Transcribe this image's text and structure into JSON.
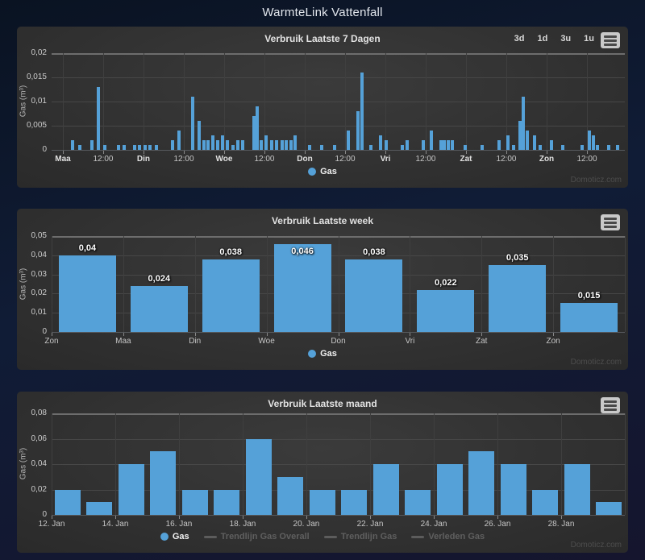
{
  "page": {
    "title": "WarmteLink Vattenfall",
    "watermark": "Domoticz.com"
  },
  "colors": {
    "bar": "#55a1d8",
    "legend_disabled": "#5f5f5f"
  },
  "chart_data": [
    {
      "type": "bar",
      "title": "Verbruik Laatste 7 Dagen",
      "ylabel": "Gas (m³)",
      "ylim": [
        0,
        0.02
      ],
      "ytick_values": [
        0,
        0.005,
        0.01,
        0.015,
        0.02
      ],
      "yticks": [
        "0",
        "0,005",
        "0,01",
        "0,015",
        "0,02"
      ],
      "xticks": [
        "Maa",
        "12:00",
        "Din",
        "12:00",
        "Woe",
        "12:00",
        "Don",
        "12:00",
        "Vri",
        "12:00",
        "Zat",
        "12:00",
        "Zon",
        "12:00"
      ],
      "xtick_bold": [
        true,
        false,
        true,
        false,
        true,
        false,
        true,
        false,
        true,
        false,
        true,
        false,
        true,
        false
      ],
      "xtick_pct": [
        1.97,
        9.0,
        16.03,
        23.07,
        30.1,
        37.13,
        44.16,
        51.2,
        58.23,
        65.26,
        72.29,
        79.32,
        86.36,
        93.39
      ],
      "vgrid_pct": [
        1.97,
        9.0,
        16.03,
        23.07,
        30.1,
        37.13,
        44.16,
        51.2,
        58.23,
        65.26,
        72.29,
        79.32,
        86.36,
        93.39
      ],
      "x_pct": [
        3.7,
        4.9,
        7.0,
        8.2,
        9.3,
        11.7,
        12.7,
        14.5,
        15.3,
        16.3,
        17.2,
        18.3,
        21.1,
        22.2,
        24.6,
        25.7,
        26.6,
        27.3,
        28.1,
        29.0,
        29.8,
        30.7,
        31.6,
        32.5,
        33.3,
        35.3,
        35.9,
        36.6,
        37.4,
        38.4,
        39.2,
        40.2,
        40.9,
        41.8,
        42.5,
        45.0,
        47.1,
        49.4,
        51.8,
        53.4,
        54.1,
        55.7,
        57.4,
        58.4,
        61.2,
        62.0,
        64.8,
        66.2,
        67.9,
        68.5,
        69.2,
        69.9,
        72.2,
        75.1,
        78.1,
        79.6,
        80.6,
        81.7,
        82.3,
        83.0,
        84.2,
        85.2,
        87.2,
        89.2,
        92.5,
        93.8,
        94.5,
        95.2,
        97.2,
        98.7
      ],
      "values": [
        0.002,
        0.001,
        0.002,
        0.013,
        0.001,
        0.001,
        0.001,
        0.001,
        0.001,
        0.001,
        0.001,
        0.001,
        0.002,
        0.004,
        0.011,
        0.006,
        0.002,
        0.002,
        0.003,
        0.002,
        0.003,
        0.002,
        0.001,
        0.002,
        0.002,
        0.007,
        0.009,
        0.002,
        0.003,
        0.002,
        0.002,
        0.002,
        0.002,
        0.002,
        0.003,
        0.001,
        0.001,
        0.001,
        0.004,
        0.008,
        0.016,
        0.001,
        0.003,
        0.002,
        0.001,
        0.002,
        0.002,
        0.004,
        0.002,
        0.002,
        0.002,
        0.002,
        0.001,
        0.001,
        0.002,
        0.003,
        0.001,
        0.006,
        0.011,
        0.004,
        0.003,
        0.001,
        0.002,
        0.001,
        0.001,
        0.004,
        0.003,
        0.001,
        0.001,
        0.001
      ],
      "range_buttons": [
        "3d",
        "1d",
        "3u",
        "1u"
      ],
      "legend": [
        {
          "label": "Gas",
          "marker": "circle",
          "enabled": true
        }
      ]
    },
    {
      "type": "bar",
      "title": "Verbruik Laatste week",
      "ylabel": "Gas (m³)",
      "ylim": [
        0,
        0.05
      ],
      "ytick_values": [
        0,
        0.01,
        0.02,
        0.03,
        0.04,
        0.05
      ],
      "yticks": [
        "0",
        "0,01",
        "0,02",
        "0,03",
        "0,04",
        "0,05"
      ],
      "categories": [
        "Zon",
        "Maa",
        "Din",
        "Woe",
        "Don",
        "Vri",
        "Zat",
        "Zon"
      ],
      "xticks": [
        "Zon",
        "Maa",
        "Din",
        "Woe",
        "Don",
        "Vri",
        "Zat",
        "Zon"
      ],
      "xtick_pct": [
        0,
        12.5,
        25,
        37.5,
        50,
        62.5,
        75,
        87.5
      ],
      "vgrid_pct": [
        0,
        12.5,
        25,
        37.5,
        50,
        62.5,
        75,
        87.5,
        100
      ],
      "x_pct": [
        6.25,
        18.75,
        31.25,
        43.75,
        56.25,
        68.75,
        81.25,
        93.75
      ],
      "values": [
        0.04,
        0.024,
        0.038,
        0.046,
        0.038,
        0.022,
        0.035,
        0.015
      ],
      "data_labels": [
        "0,04",
        "0,024",
        "0,038",
        "0,046",
        "0,038",
        "0,022",
        "0,035",
        "0,015"
      ],
      "label_inside": [
        false,
        false,
        false,
        true,
        false,
        false,
        false,
        false
      ],
      "legend": [
        {
          "label": "Gas",
          "marker": "circle",
          "enabled": true
        }
      ]
    },
    {
      "type": "bar",
      "title": "Verbruik Laatste maand",
      "ylabel": "Gas (m³)",
      "ylim": [
        0,
        0.08
      ],
      "ytick_values": [
        0,
        0.02,
        0.04,
        0.06,
        0.08
      ],
      "yticks": [
        "0",
        "0,02",
        "0,04",
        "0,06",
        "0,08"
      ],
      "xticks": [
        "12. Jan",
        "14. Jan",
        "16. Jan",
        "18. Jan",
        "20. Jan",
        "22. Jan",
        "24. Jan",
        "26. Jan",
        "28. Jan"
      ],
      "xtick_pct": [
        0,
        11.11,
        22.22,
        33.33,
        44.44,
        55.56,
        66.67,
        77.78,
        88.89
      ],
      "vgrid_pct": [
        0,
        11.11,
        22.22,
        33.33,
        44.44,
        55.56,
        66.67,
        77.78,
        88.89,
        100
      ],
      "x_pct": [
        2.78,
        8.33,
        13.89,
        19.44,
        25.0,
        30.56,
        36.11,
        41.67,
        47.22,
        52.78,
        58.33,
        63.89,
        69.44,
        75.0,
        80.56,
        86.11,
        91.67,
        97.22
      ],
      "values": [
        0.02,
        0.01,
        0.04,
        0.05,
        0.02,
        0.02,
        0.06,
        0.03,
        0.02,
        0.02,
        0.04,
        0.02,
        0.04,
        0.05,
        0.04,
        0.02,
        0.04,
        0.01
      ],
      "legend": [
        {
          "label": "Gas",
          "marker": "circle",
          "enabled": true
        },
        {
          "label": "Trendlijn Gas Overall",
          "marker": "line",
          "enabled": false
        },
        {
          "label": "Trendlijn Gas",
          "marker": "line",
          "enabled": false
        },
        {
          "label": "Verleden Gas",
          "marker": "line",
          "enabled": false
        }
      ]
    }
  ]
}
